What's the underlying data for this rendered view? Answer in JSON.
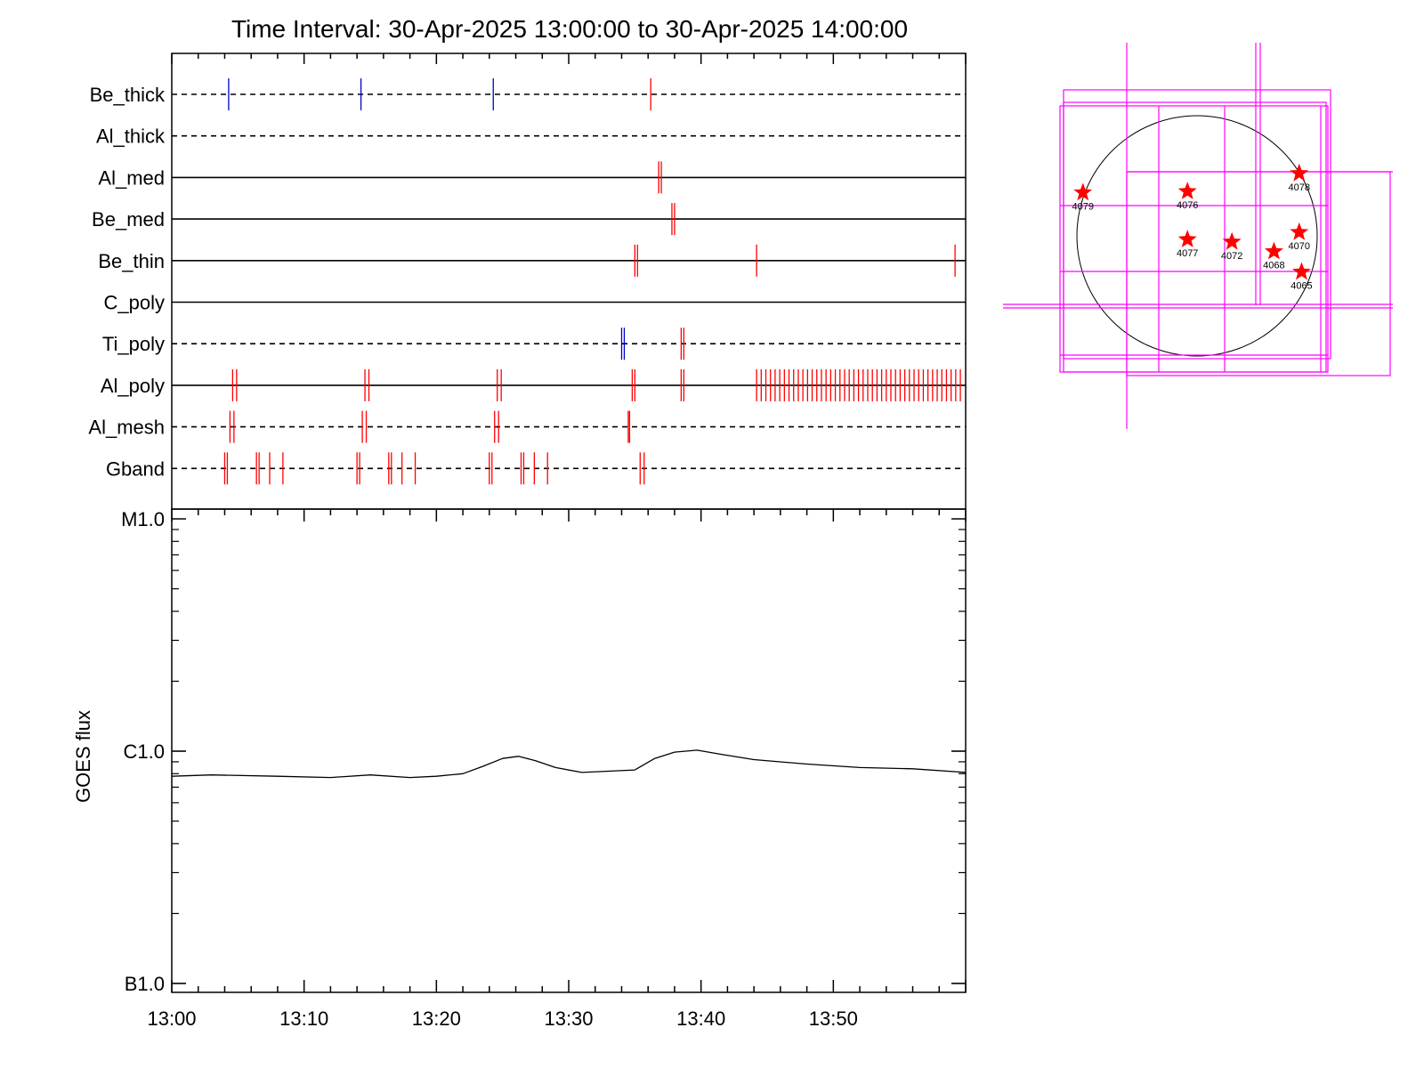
{
  "title": "Time Interval: 30-Apr-2025 13:00:00 to 30-Apr-2025 14:00:00",
  "colors": {
    "red": "#ff0000",
    "blue": "#0000cc",
    "magenta": "#ff00ff",
    "black": "#000000"
  },
  "chart_data": [
    {
      "type": "event-timeline",
      "x_range_minutes": [
        0,
        60
      ],
      "rows": [
        {
          "label": "Be_thick",
          "line": "dashed",
          "events": [
            {
              "t": 4.3,
              "color": "blue"
            },
            {
              "t": 14.3,
              "color": "blue"
            },
            {
              "t": 24.3,
              "color": "blue"
            },
            {
              "t": 36.2,
              "color": "red"
            }
          ]
        },
        {
          "label": "Al_thick",
          "line": "dashed",
          "events": []
        },
        {
          "label": "Al_med",
          "line": "solid",
          "events": [
            {
              "t": 36.8,
              "color": "red"
            },
            {
              "t": 37.0,
              "color": "red"
            }
          ]
        },
        {
          "label": "Be_med",
          "line": "solid",
          "events": [
            {
              "t": 37.8,
              "color": "red"
            },
            {
              "t": 38.0,
              "color": "red"
            }
          ]
        },
        {
          "label": "Be_thin",
          "line": "solid",
          "events": [
            {
              "t": 35.0,
              "color": "red"
            },
            {
              "t": 35.2,
              "color": "red"
            },
            {
              "t": 44.2,
              "color": "red"
            },
            {
              "t": 59.2,
              "color": "red"
            }
          ]
        },
        {
          "label": "C_poly",
          "line": "solid",
          "events": []
        },
        {
          "label": "Ti_poly",
          "line": "dashed",
          "events": [
            {
              "t": 34.0,
              "color": "blue"
            },
            {
              "t": 34.2,
              "color": "blue"
            },
            {
              "t": 38.5,
              "color": "red"
            },
            {
              "t": 38.7,
              "color": "red"
            }
          ]
        },
        {
          "label": "Al_poly",
          "line": "solid",
          "events": [
            {
              "t": 4.6,
              "color": "red"
            },
            {
              "t": 4.9,
              "color": "red"
            },
            {
              "t": 14.6,
              "color": "red"
            },
            {
              "t": 14.9,
              "color": "red"
            },
            {
              "t": 24.6,
              "color": "red"
            },
            {
              "t": 24.9,
              "color": "red"
            },
            {
              "t": 34.8,
              "color": "red"
            },
            {
              "t": 35.0,
              "color": "red"
            },
            {
              "t": 38.5,
              "color": "red"
            },
            {
              "t": 38.7,
              "color": "red"
            }
          ],
          "dense_range": {
            "start": 44.2,
            "end": 59.7,
            "step": 0.35,
            "color": "red"
          }
        },
        {
          "label": "Al_mesh",
          "line": "dashed",
          "events": [
            {
              "t": 4.4,
              "color": "red"
            },
            {
              "t": 4.7,
              "color": "red"
            },
            {
              "t": 14.4,
              "color": "red"
            },
            {
              "t": 14.7,
              "color": "red"
            },
            {
              "t": 24.4,
              "color": "red"
            },
            {
              "t": 24.7,
              "color": "red"
            },
            {
              "t": 34.5,
              "color": "red"
            },
            {
              "t": 34.6,
              "color": "red"
            }
          ]
        },
        {
          "label": "Gband",
          "line": "dashed",
          "events": [
            {
              "t": 4.0,
              "color": "red"
            },
            {
              "t": 4.2,
              "color": "red"
            },
            {
              "t": 6.4,
              "color": "red"
            },
            {
              "t": 6.6,
              "color": "red"
            },
            {
              "t": 7.4,
              "color": "red"
            },
            {
              "t": 8.4,
              "color": "red"
            },
            {
              "t": 14.0,
              "color": "red"
            },
            {
              "t": 14.2,
              "color": "red"
            },
            {
              "t": 16.4,
              "color": "red"
            },
            {
              "t": 16.6,
              "color": "red"
            },
            {
              "t": 17.4,
              "color": "red"
            },
            {
              "t": 18.4,
              "color": "red"
            },
            {
              "t": 24.0,
              "color": "red"
            },
            {
              "t": 24.2,
              "color": "red"
            },
            {
              "t": 26.4,
              "color": "red"
            },
            {
              "t": 26.6,
              "color": "red"
            },
            {
              "t": 27.4,
              "color": "red"
            },
            {
              "t": 28.4,
              "color": "red"
            },
            {
              "t": 35.4,
              "color": "red"
            },
            {
              "t": 35.7,
              "color": "red"
            }
          ]
        }
      ]
    },
    {
      "type": "line",
      "ylabel": "GOES flux",
      "yscale": "log",
      "ylim": [
        1e-07,
        1e-05
      ],
      "y_tick_labels": [
        {
          "label": "M1.0",
          "value": 1e-05
        },
        {
          "label": "C1.0",
          "value": 1e-06
        },
        {
          "label": "B1.0",
          "value": 1e-07
        }
      ],
      "x_tick_labels": [
        "13:00",
        "13:10",
        "13:20",
        "13:30",
        "13:40",
        "13:50"
      ],
      "x_tick_minutes": [
        0,
        10,
        20,
        30,
        40,
        50
      ],
      "series": [
        {
          "x": [
            0,
            3,
            8,
            12,
            15,
            18,
            20,
            22,
            23.5,
            25,
            26.2,
            27.5,
            29,
            31,
            33,
            35,
            36.5,
            38,
            39.7,
            41.5,
            44,
            48,
            52,
            56,
            60
          ],
          "y": [
            7.8e-07,
            7.9e-07,
            7.8e-07,
            7.7e-07,
            7.9e-07,
            7.7e-07,
            7.8e-07,
            8e-07,
            8.6e-07,
            9.3e-07,
            9.5e-07,
            9.1e-07,
            8.5e-07,
            8.1e-07,
            8.2e-07,
            8.3e-07,
            9.3e-07,
            9.9e-07,
            1.01e-06,
            9.7e-07,
            9.2e-07,
            8.8e-07,
            8.5e-07,
            8.4e-07,
            8.1e-07
          ]
        }
      ]
    },
    {
      "type": "scatter",
      "description_free": true,
      "markers": [
        {
          "label": "4079",
          "x": -0.95,
          "y": 0.36
        },
        {
          "label": "4076",
          "x": -0.08,
          "y": 0.37
        },
        {
          "label": "4078",
          "x": 0.85,
          "y": 0.52
        },
        {
          "label": "4077",
          "x": -0.08,
          "y": -0.03
        },
        {
          "label": "4072",
          "x": 0.29,
          "y": -0.05
        },
        {
          "label": "4070",
          "x": 0.85,
          "y": 0.03
        },
        {
          "label": "4068",
          "x": 0.64,
          "y": -0.13
        },
        {
          "label": "4065",
          "x": 0.87,
          "y": -0.3
        }
      ]
    }
  ]
}
